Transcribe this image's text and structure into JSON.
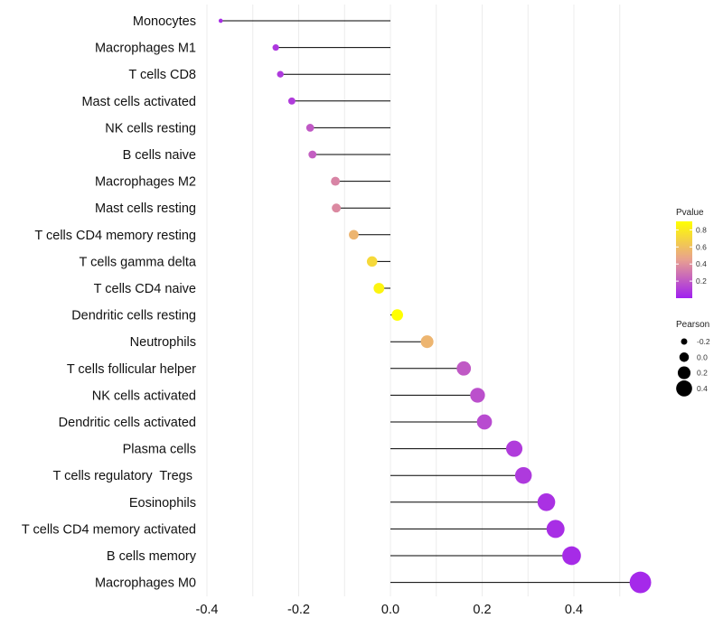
{
  "chart_data": {
    "type": "lollipop",
    "orientation": "horizontal",
    "xlim": [
      -0.4,
      0.55
    ],
    "x_ticks": [
      -0.4,
      -0.2,
      0.0,
      0.2,
      0.4
    ],
    "x_tick_labels": [
      "-0.4",
      "-0.2",
      "0.0",
      "0.2",
      "0.4"
    ],
    "grid": true,
    "categories": [
      "Monocytes",
      "Macrophages M1",
      "T cells CD8",
      "Mast cells activated",
      "NK cells resting",
      "B cells naive",
      "Macrophages M2",
      "Mast cells resting",
      "T cells CD4 memory resting",
      "T cells gamma delta",
      "T cells CD4 naive",
      "Dendritic cells resting",
      "Neutrophils",
      "T cells follicular helper",
      "NK cells activated",
      "Dendritic cells activated",
      "Plasma cells",
      "T cells regulatory  Tregs ",
      "Eosinophils",
      "T cells CD4 memory activated",
      "B cells memory",
      "Macrophages M0"
    ],
    "values": [
      -0.37,
      -0.25,
      -0.24,
      -0.215,
      -0.175,
      -0.17,
      -0.12,
      -0.118,
      -0.08,
      -0.04,
      -0.025,
      0.015,
      0.08,
      0.16,
      0.19,
      0.205,
      0.27,
      0.29,
      0.34,
      0.36,
      0.395,
      0.545
    ],
    "pvalues": [
      0.05,
      0.08,
      0.09,
      0.1,
      0.2,
      0.22,
      0.35,
      0.37,
      0.55,
      0.72,
      0.85,
      0.92,
      0.55,
      0.2,
      0.17,
      0.15,
      0.1,
      0.09,
      0.06,
      0.05,
      0.04,
      0.03
    ],
    "color_legend": {
      "title": "Pvalue",
      "ticks": [
        "0.8",
        "0.6",
        "0.4",
        "0.2"
      ],
      "tick_values": [
        0.8,
        0.6,
        0.4,
        0.2
      ],
      "range": [
        0.0,
        0.9
      ],
      "low_color": "#A020F0",
      "mid_color": "#E8A090",
      "high_color": "#FFFF00"
    },
    "size_legend": {
      "title": "Pearson",
      "labels": [
        "-0.2",
        "0.0",
        "0.2",
        "0.4"
      ],
      "values": [
        -0.2,
        0.0,
        0.2,
        0.4
      ]
    }
  }
}
